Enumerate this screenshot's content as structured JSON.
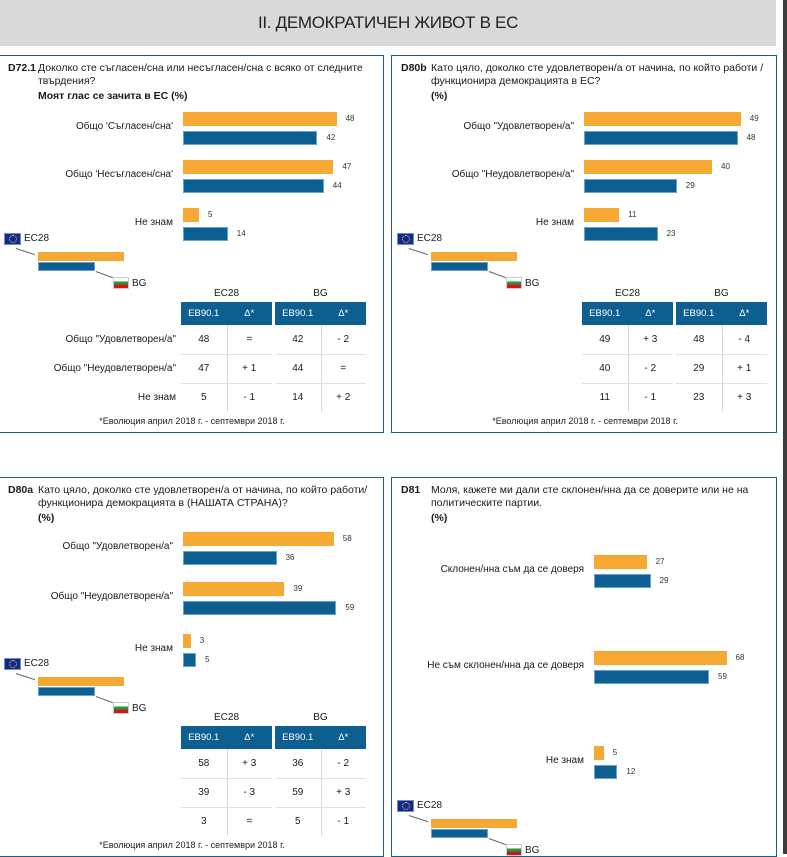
{
  "header": {
    "title": "II. ДЕМОКРАТИЧЕН ЖИВОТ В ЕС"
  },
  "legend": {
    "eu_label": "ЕС28",
    "bg_label": "BG"
  },
  "colors": {
    "eu": "#f5a833",
    "bg": "#0d5f92",
    "header_bg": "#d9d9d9",
    "border": "#1f5f86"
  },
  "table_headers": {
    "group_eu": "ЕС28",
    "group_bg": "BG",
    "col_value": "EB90.1",
    "col_delta": "Δ*"
  },
  "footnote": "*Еволюция април 2018 г. - септември 2018 г.",
  "chart_data": [
    {
      "type": "bar",
      "code": "D72.1",
      "title": "Доколко сте съгласен/сна или несъгласен/сна с всяко от следните твърдения?",
      "subtitle": "Моят глас се зачита в ЕС  (%)",
      "categories": [
        "Общо 'Съгласен/сна'",
        "Общо 'Несъгласен/сна'",
        "Не знам"
      ],
      "series": [
        {
          "name": "ЕС28",
          "values": [
            48,
            47,
            5
          ]
        },
        {
          "name": "BG",
          "values": [
            42,
            44,
            14
          ]
        }
      ],
      "table": {
        "rows": [
          {
            "label": "Общо 'Съгласен/сна'",
            "eu": "48",
            "eu_delta": "=",
            "bg": "42",
            "bg_delta": "- 2"
          },
          {
            "label": "Общо 'Несъгласен/сна'",
            "eu": "47",
            "eu_delta": "+ 1",
            "bg": "44",
            "bg_delta": "="
          },
          {
            "label": "Не знам",
            "eu": "5",
            "eu_delta": "- 1",
            "bg": "14",
            "bg_delta": "+ 2"
          }
        ]
      }
    },
    {
      "type": "bar",
      "code": "D80b",
      "title": "Като цяло, доколко сте удовлетворен/а от начина, по който работи / функционира демокрацията в ЕС?",
      "subtitle": "(%)",
      "categories": [
        "Общо \"Удовлетворен/а\"",
        "Общо \"Неудовлетворен/а\"",
        "Не знам"
      ],
      "series": [
        {
          "name": "ЕС28",
          "values": [
            49,
            40,
            11
          ]
        },
        {
          "name": "BG",
          "values": [
            48,
            29,
            23
          ]
        }
      ],
      "table": {
        "rows": [
          {
            "label": "Общо \"Удовлетворен/а\"",
            "eu": "49",
            "eu_delta": "+ 3",
            "bg": "48",
            "bg_delta": "- 4"
          },
          {
            "label": "Общо \"Неудовлетворен/а\"",
            "eu": "40",
            "eu_delta": "- 2",
            "bg": "29",
            "bg_delta": "+ 1"
          },
          {
            "label": "Не знам",
            "eu": "11",
            "eu_delta": "- 1",
            "bg": "23",
            "bg_delta": "+ 3"
          }
        ]
      }
    },
    {
      "type": "bar",
      "code": "D80a",
      "title": "Като цяло, доколко сте удовлетворен/а от начина, по който работи/функционира демокрацията в (НАШАТА СТРАНА)?",
      "subtitle": "(%)",
      "categories": [
        "Общо \"Удовлетворен/а\"",
        "Общо \"Неудовлетворен/а\"",
        "Не знам"
      ],
      "series": [
        {
          "name": "ЕС28",
          "values": [
            58,
            39,
            3
          ]
        },
        {
          "name": "BG",
          "values": [
            36,
            59,
            5
          ]
        }
      ],
      "table": {
        "rows": [
          {
            "label": "Общо \"Удовлетворен/а\"",
            "eu": "58",
            "eu_delta": "+ 3",
            "bg": "36",
            "bg_delta": "- 2"
          },
          {
            "label": "Общо \"Неудовлетворен/а\"",
            "eu": "39",
            "eu_delta": "- 3",
            "bg": "59",
            "bg_delta": "+ 3"
          },
          {
            "label": "Не знам",
            "eu": "3",
            "eu_delta": "=",
            "bg": "5",
            "bg_delta": "- 1"
          }
        ]
      }
    },
    {
      "type": "bar",
      "code": "D81",
      "title": "Моля, кажете ми дали сте склонен/нна да се доверите или не на политическите партии.",
      "subtitle": "(%)",
      "categories": [
        "Склонен/нна съм да се доверя",
        "Не съм склонен/нна да се доверя",
        "Не знам"
      ],
      "series": [
        {
          "name": "ЕС28",
          "values": [
            27,
            68,
            5
          ]
        },
        {
          "name": "BG",
          "values": [
            29,
            59,
            12
          ]
        }
      ]
    }
  ]
}
